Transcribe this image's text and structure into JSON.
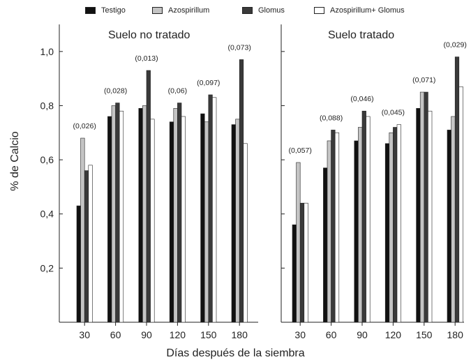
{
  "chart_data": {
    "type": "bar",
    "ylabel": "% de Calcio",
    "xlabel": "Días después de la siembra",
    "ylim": [
      0.0,
      1.1
    ],
    "yticks": [
      "0,2",
      "0,4",
      "0,6",
      "0,8",
      "1,0"
    ],
    "ytick_values": [
      0.2,
      0.4,
      0.6,
      0.8,
      1.0
    ],
    "categories": [
      "30",
      "60",
      "90",
      "120",
      "150",
      "180"
    ],
    "legend": {
      "placement": "top",
      "entries": [
        {
          "name": "Testigo",
          "color": "#111111"
        },
        {
          "name": "Azospirillum",
          "color": "#c4c4c4"
        },
        {
          "name": "Glomus",
          "color": "#3a3a3a"
        },
        {
          "name": "Azospirillum+ Glomus",
          "color": "#ffffff"
        }
      ]
    },
    "panels": [
      {
        "title": "Suelo no tratado",
        "series": [
          {
            "name": "Testigo",
            "values": [
              0.43,
              0.76,
              0.79,
              0.74,
              0.77,
              0.73
            ]
          },
          {
            "name": "Azospirillum",
            "values": [
              0.68,
              0.8,
              0.8,
              0.79,
              0.74,
              0.75
            ]
          },
          {
            "name": "Glomus",
            "values": [
              0.56,
              0.81,
              0.93,
              0.81,
              0.84,
              0.97
            ]
          },
          {
            "name": "Azospirillum+ Glomus",
            "values": [
              0.58,
              0.78,
              0.75,
              0.76,
              0.83,
              0.66
            ]
          }
        ],
        "annotations": [
          "(0,026)",
          "(0,028)",
          "(0,013)",
          "(0,06)",
          "(0,097)",
          "(0,073)"
        ]
      },
      {
        "title": "Suelo tratado",
        "series": [
          {
            "name": "Testigo",
            "values": [
              0.36,
              0.57,
              0.67,
              0.66,
              0.79,
              0.71
            ]
          },
          {
            "name": "Azospirillum",
            "values": [
              0.59,
              0.67,
              0.72,
              0.7,
              0.85,
              0.76
            ]
          },
          {
            "name": "Glomus",
            "values": [
              0.44,
              0.71,
              0.78,
              0.72,
              0.85,
              0.98
            ]
          },
          {
            "name": "Azospirillum+ Glomus",
            "values": [
              0.44,
              0.7,
              0.76,
              0.73,
              0.78,
              0.87
            ]
          }
        ],
        "annotations": [
          "(0,057)",
          "(0,088)",
          "(0,046)",
          "(0,045)",
          "(0,071)",
          "(0,029)"
        ]
      }
    ]
  }
}
